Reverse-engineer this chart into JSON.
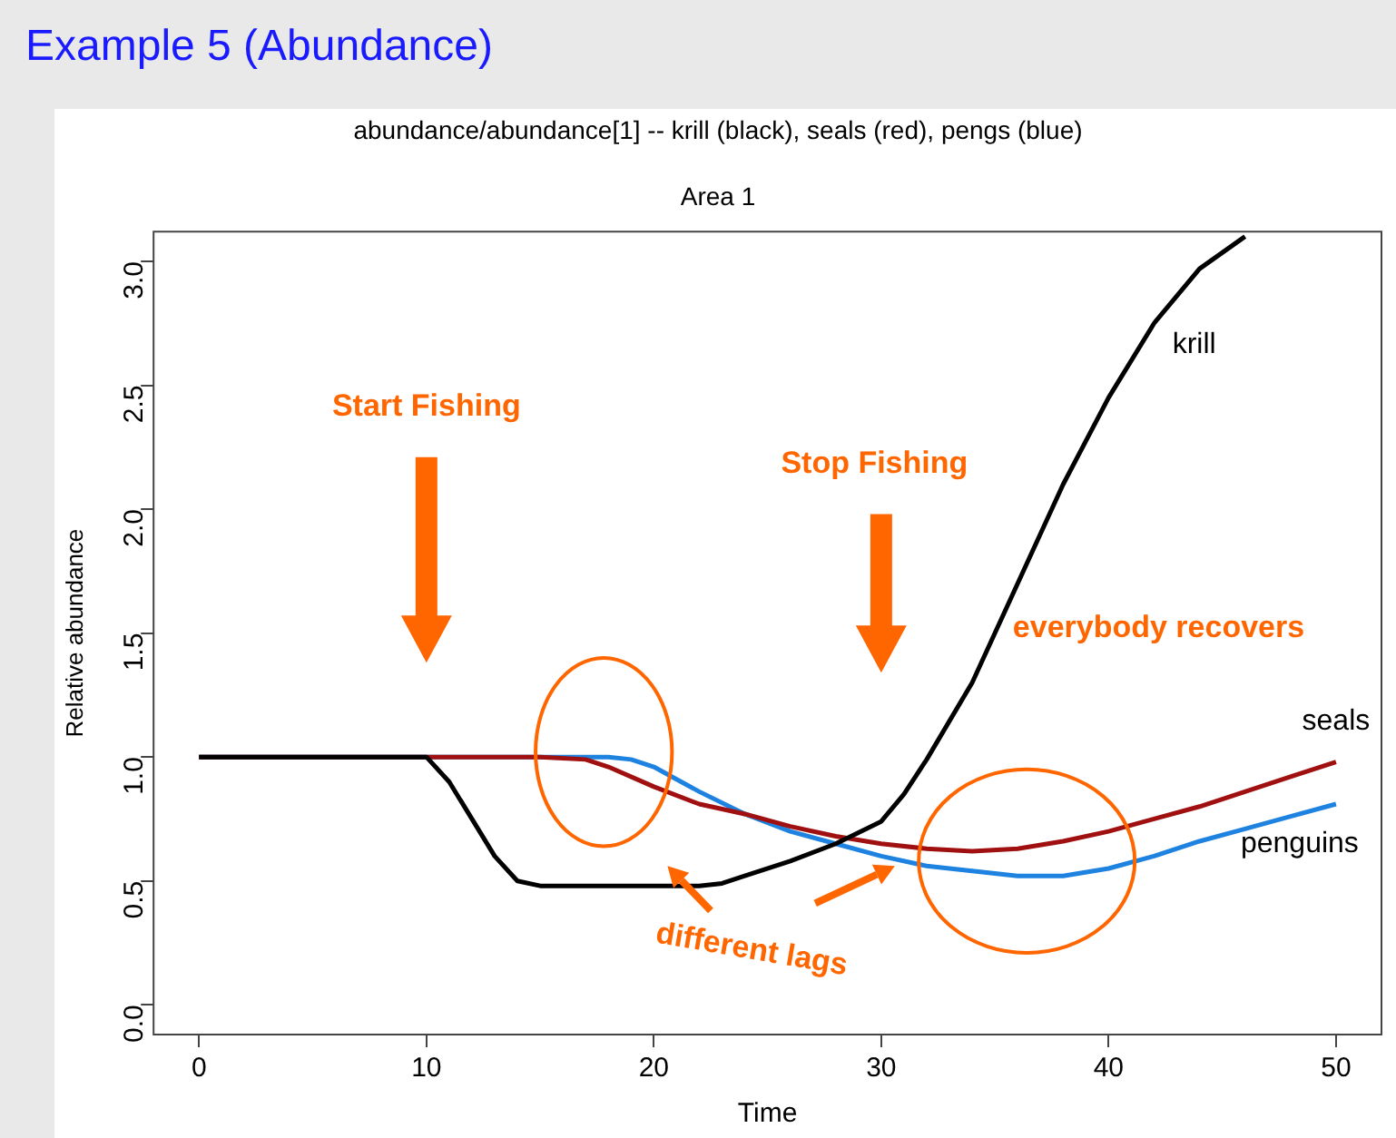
{
  "chart_data": {
    "type": "line",
    "title": "Example 5 (Abundance)",
    "subtitle": "abundance/abundance[1] -- krill (black), seals (red), pengs (blue)",
    "xlabel": "Time",
    "ylabel": "Relative abundance",
    "annotations": [
      "Area 1",
      "Start Fishing",
      "Stop Fishing",
      "everybody recovers",
      "different lags"
    ],
    "series": [
      {
        "name": "krill",
        "color": "#000000",
        "x": [
          0,
          10,
          11,
          12,
          13,
          14,
          15,
          17,
          20,
          22,
          23,
          24,
          26,
          28,
          30,
          31,
          32,
          34,
          36,
          38,
          40,
          42,
          44,
          46
        ],
        "values": [
          1,
          1,
          0.9,
          0.75,
          0.6,
          0.5,
          0.48,
          0.48,
          0.48,
          0.48,
          0.49,
          0.52,
          0.58,
          0.65,
          0.74,
          0.85,
          0.99,
          1.3,
          1.7,
          2.1,
          2.45,
          2.75,
          2.97,
          3.1
        ]
      },
      {
        "name": "seals",
        "color": "#a01010",
        "x": [
          0,
          15,
          17,
          18,
          20,
          22,
          24,
          26,
          28,
          30,
          32,
          34,
          36,
          38,
          40,
          42,
          44,
          46,
          48,
          50
        ],
        "values": [
          1,
          1,
          0.99,
          0.96,
          0.88,
          0.81,
          0.77,
          0.72,
          0.68,
          0.65,
          0.63,
          0.62,
          0.63,
          0.66,
          0.7,
          0.75,
          0.8,
          0.86,
          0.92,
          0.98
        ]
      },
      {
        "name": "penguins",
        "color": "#1e82e0",
        "x": [
          0,
          18,
          19,
          20,
          21,
          22,
          24,
          26,
          28,
          30,
          32,
          34,
          36,
          38,
          40,
          42,
          44,
          46,
          48,
          50
        ],
        "values": [
          1,
          1,
          0.99,
          0.96,
          0.91,
          0.86,
          0.77,
          0.7,
          0.65,
          0.6,
          0.56,
          0.54,
          0.52,
          0.52,
          0.55,
          0.6,
          0.66,
          0.71,
          0.76,
          0.81
        ]
      }
    ],
    "xlim": [
      -2,
      52
    ],
    "xticks": [
      0,
      10,
      20,
      30,
      40,
      50
    ],
    "ylim": [
      -0.12,
      3.12
    ],
    "yticks": [
      {
        "value": 0,
        "label": "0.0"
      },
      {
        "value": 0.5,
        "label": "0.5"
      },
      {
        "value": 1,
        "label": "1.0"
      },
      {
        "value": 1.5,
        "label": "1.5"
      },
      {
        "value": 2,
        "label": "2.0"
      },
      {
        "value": 2.5,
        "label": "2.5"
      },
      {
        "value": 3,
        "label": "3.0"
      }
    ],
    "grid": false,
    "legend": false,
    "marker": "none",
    "line_style": "solid"
  }
}
